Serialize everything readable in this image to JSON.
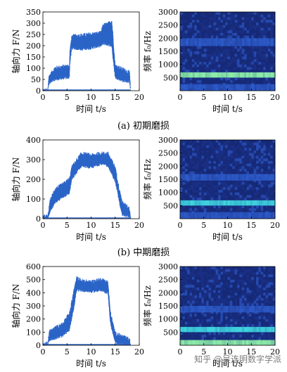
{
  "captions": [
    "(a) 初期磨损",
    "(b) 中期磨损"
  ],
  "watermark": "知乎 @吴连明数字学派",
  "colors": {
    "force_line": "#2b64c7",
    "spec_bg": "#1a2f84",
    "spec_band_dark": "#142670",
    "spec_band_mid": "#2f5fd0",
    "spec_band_bright": "#8ef0a8",
    "spec_band_cyan": "#3fd6e0"
  },
  "chart_data": [
    {
      "type": "line",
      "panel": "a-force",
      "xlabel": "时间 t/s",
      "ylabel": "轴向力 F/N",
      "xlim": [
        0,
        20
      ],
      "ylim": [
        0,
        350
      ],
      "xticks": [
        0,
        5,
        10,
        15,
        20
      ],
      "yticks": [
        0,
        50,
        100,
        150,
        200,
        250,
        300,
        350
      ],
      "series": [
        {
          "envelope_x": [
            0,
            1,
            1.2,
            2.5,
            5.5,
            5.6,
            6,
            8,
            10,
            12,
            12.5,
            13.5,
            14.3,
            14.5,
            15,
            16.5,
            18,
            18.2
          ],
          "upper": [
            0,
            0,
            60,
            100,
            110,
            180,
            240,
            245,
            250,
            255,
            290,
            295,
            310,
            260,
            110,
            95,
            80,
            0
          ],
          "lower": [
            0,
            0,
            30,
            50,
            60,
            120,
            190,
            185,
            190,
            200,
            210,
            205,
            200,
            150,
            60,
            45,
            40,
            0
          ]
        }
      ]
    },
    {
      "type": "heatmap",
      "panel": "a-spectrogram",
      "xlabel": "时间 t/s",
      "ylabel": "频率 f₀/Hz",
      "xlim": [
        0,
        20
      ],
      "ylim": [
        0,
        3000
      ],
      "xticks": [
        0,
        5,
        10,
        15,
        20
      ],
      "yticks": [
        500,
        1000,
        1500,
        2000,
        2500,
        3000
      ],
      "bands": [
        {
          "f0": 0,
          "f1": 250,
          "level": "mid"
        },
        {
          "f0": 500,
          "f1": 700,
          "level": "bright"
        },
        {
          "f0": 1700,
          "f1": 2000,
          "level": "mid"
        }
      ]
    },
    {
      "type": "line",
      "panel": "b-force",
      "xlabel": "时间 t/s",
      "ylabel": "轴向力 F/N",
      "xlim": [
        0,
        20
      ],
      "ylim": [
        0,
        400
      ],
      "xticks": [
        0,
        5,
        10,
        15,
        20
      ],
      "yticks": [
        0,
        100,
        200,
        300,
        400
      ],
      "series": [
        {
          "envelope_x": [
            0,
            1,
            1.5,
            2.5,
            4,
            5.5,
            6,
            8,
            10,
            12,
            13.5,
            15,
            16,
            16.5,
            18,
            18.2
          ],
          "upper": [
            10,
            10,
            90,
            150,
            170,
            200,
            260,
            330,
            320,
            330,
            330,
            260,
            130,
            80,
            50,
            0
          ],
          "lower": [
            0,
            0,
            40,
            80,
            110,
            130,
            200,
            270,
            260,
            280,
            270,
            190,
            70,
            20,
            10,
            0
          ]
        }
      ]
    },
    {
      "type": "heatmap",
      "panel": "b-spectrogram",
      "xlabel": "时间 t/s",
      "ylabel": "频率 f₀/Hz",
      "xlim": [
        0,
        20
      ],
      "ylim": [
        0,
        3000
      ],
      "xticks": [
        0,
        5,
        10,
        15,
        20
      ],
      "yticks": [
        500,
        1000,
        1500,
        2000,
        2500,
        3000
      ],
      "bands": [
        {
          "f0": 0,
          "f1": 250,
          "level": "mid"
        },
        {
          "f0": 500,
          "f1": 700,
          "level": "cyan"
        },
        {
          "f0": 1450,
          "f1": 1700,
          "level": "mid"
        }
      ]
    },
    {
      "type": "line",
      "panel": "c-force",
      "xlabel": "时间 t/s",
      "ylabel": "轴向力 F/N",
      "xlim": [
        0,
        20
      ],
      "ylim": [
        0,
        600
      ],
      "xticks": [
        0,
        5,
        10,
        15,
        20
      ],
      "yticks": [
        0,
        100,
        200,
        300,
        400,
        500,
        600
      ],
      "series": [
        {
          "envelope_x": [
            0,
            1,
            1.3,
            3,
            4,
            5.5,
            6.5,
            7,
            8,
            10,
            12,
            13.5,
            14,
            15,
            18,
            18.2
          ],
          "upper": [
            10,
            10,
            100,
            140,
            160,
            240,
            430,
            510,
            490,
            480,
            500,
            480,
            250,
            90,
            40,
            0
          ],
          "lower": [
            0,
            0,
            40,
            60,
            70,
            120,
            300,
            420,
            420,
            410,
            420,
            400,
            170,
            20,
            0,
            0
          ]
        }
      ]
    },
    {
      "type": "heatmap",
      "panel": "c-spectrogram",
      "xlabel": "时间 t/s",
      "ylabel": "频率 f₀/Hz",
      "xlim": [
        0,
        20
      ],
      "ylim": [
        0,
        3000
      ],
      "xticks": [
        0,
        5,
        10,
        15,
        20
      ],
      "yticks": [
        500,
        1000,
        1500,
        2000,
        2500,
        3000
      ],
      "bands": [
        {
          "f0": 0,
          "f1": 200,
          "level": "bright"
        },
        {
          "f0": 500,
          "f1": 700,
          "level": "cyan"
        },
        {
          "f0": 1250,
          "f1": 1500,
          "level": "mid"
        }
      ]
    }
  ]
}
